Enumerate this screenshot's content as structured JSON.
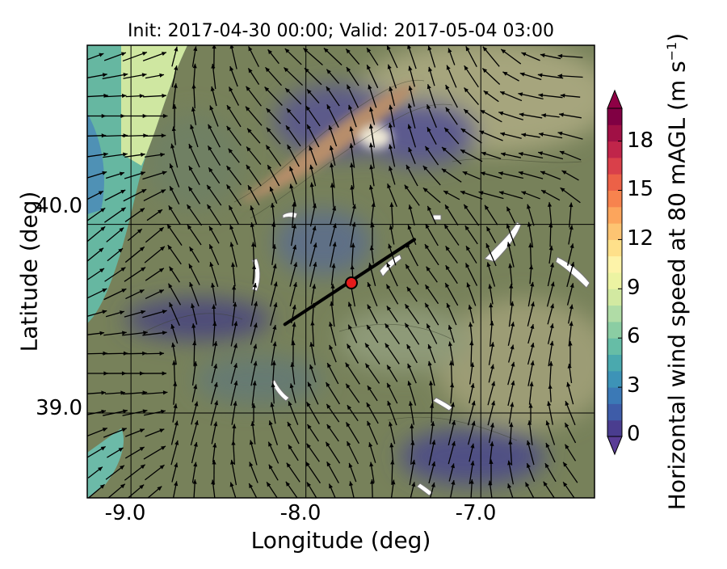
{
  "title": "Init: 2017-04-30 00:00; Valid: 2017-05-04 03:00",
  "xlabel": "Longitude (deg)",
  "ylabel": "Latitude (deg)",
  "colorbar": {
    "label_main": "Horizontal wind speed at 80 mAGL (m s",
    "label_exp": "−1",
    "label_close": ")",
    "ticks": [
      "0",
      "3",
      "6",
      "9",
      "12",
      "15",
      "18"
    ],
    "tick_values": [
      0,
      3,
      6,
      9,
      12,
      15,
      18
    ],
    "range": [
      0,
      20
    ],
    "colors": [
      "#4a3d8f",
      "#3e5ca8",
      "#3b79b6",
      "#3d93b7",
      "#4aa9ae",
      "#66bda6",
      "#8bcda3",
      "#b0dca6",
      "#d2e9a1",
      "#ecf3a2",
      "#fdf3a9",
      "#fee08a",
      "#fdc472",
      "#fca55c",
      "#f7834e",
      "#ec6147",
      "#d9404a",
      "#c0254a",
      "#a01045",
      "#800043"
    ]
  },
  "map": {
    "lon_range": [
      -9.25,
      -6.35
    ],
    "lat_range": [
      38.55,
      40.95
    ],
    "x_ticks": [
      "-9.0",
      "-8.0",
      "-7.0"
    ],
    "x_tick_values": [
      -9.0,
      -8.0,
      -7.0
    ],
    "y_ticks": [
      "40.0",
      "39.0"
    ],
    "y_tick_values": [
      40.0,
      39.0
    ],
    "grid": true,
    "vector_field": "wind vectors at 80 mAGL, mostly directed north to north-northwest",
    "transect": {
      "lon": [
        -8.12,
        -7.38
      ],
      "lat": [
        39.47,
        39.92
      ]
    },
    "marker": {
      "lon": -7.74,
      "lat": 39.69,
      "color": "#e51b1b"
    }
  }
}
